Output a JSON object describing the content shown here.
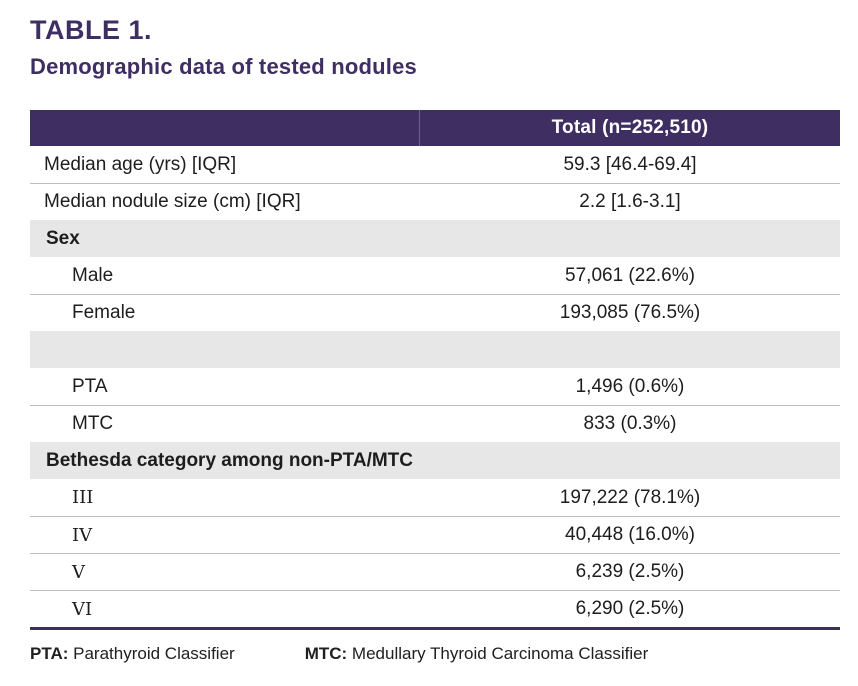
{
  "page": {
    "title": "TABLE 1.",
    "subtitle": "Demographic data of tested nodules"
  },
  "table": {
    "header": {
      "value_col": "Total (n=252,510)"
    },
    "rows": [
      {
        "type": "data",
        "indent": false,
        "roman": false,
        "label": "Median age (yrs) [IQR]",
        "value": "59.3 [46.4-69.4]"
      },
      {
        "type": "data",
        "indent": false,
        "roman": false,
        "label": "Median nodule size (cm) [IQR]",
        "value": "2.2 [1.6-3.1]"
      },
      {
        "type": "section",
        "label": "Sex"
      },
      {
        "type": "data",
        "indent": true,
        "roman": false,
        "label": "Male",
        "value": "57,061 (22.6%)"
      },
      {
        "type": "data",
        "indent": true,
        "roman": false,
        "label": "Female",
        "value": "193,085 (76.5%)"
      },
      {
        "type": "section",
        "label": ""
      },
      {
        "type": "data",
        "indent": true,
        "roman": false,
        "label": "PTA",
        "value": "1,496 (0.6%)"
      },
      {
        "type": "data",
        "indent": true,
        "roman": false,
        "label": "MTC",
        "value": "833 (0.3%)"
      },
      {
        "type": "section",
        "label": "Bethesda category among non-PTA/MTC"
      },
      {
        "type": "data",
        "indent": true,
        "roman": true,
        "label": "III",
        "value": "197,222 (78.1%)"
      },
      {
        "type": "data",
        "indent": true,
        "roman": true,
        "label": "IV",
        "value": "40,448 (16.0%)"
      },
      {
        "type": "data",
        "indent": true,
        "roman": true,
        "label": "V",
        "value": "6,239 (2.5%)"
      },
      {
        "type": "data",
        "indent": true,
        "roman": true,
        "label": "VI",
        "value": "6,290 (2.5%)"
      }
    ]
  },
  "footnotes": [
    {
      "abbr": "PTA:",
      "definition": "Parathyroid Classifier"
    },
    {
      "abbr": "MTC:",
      "definition": "Medullary Thyroid Carcinoma Classifier"
    }
  ],
  "colors": {
    "header_bg": "#3e2e62",
    "section_bg": "#e7e7e7",
    "title_color": "#3e2e62",
    "row_border": "#bdbdc2",
    "text": "#1d1d1f"
  }
}
